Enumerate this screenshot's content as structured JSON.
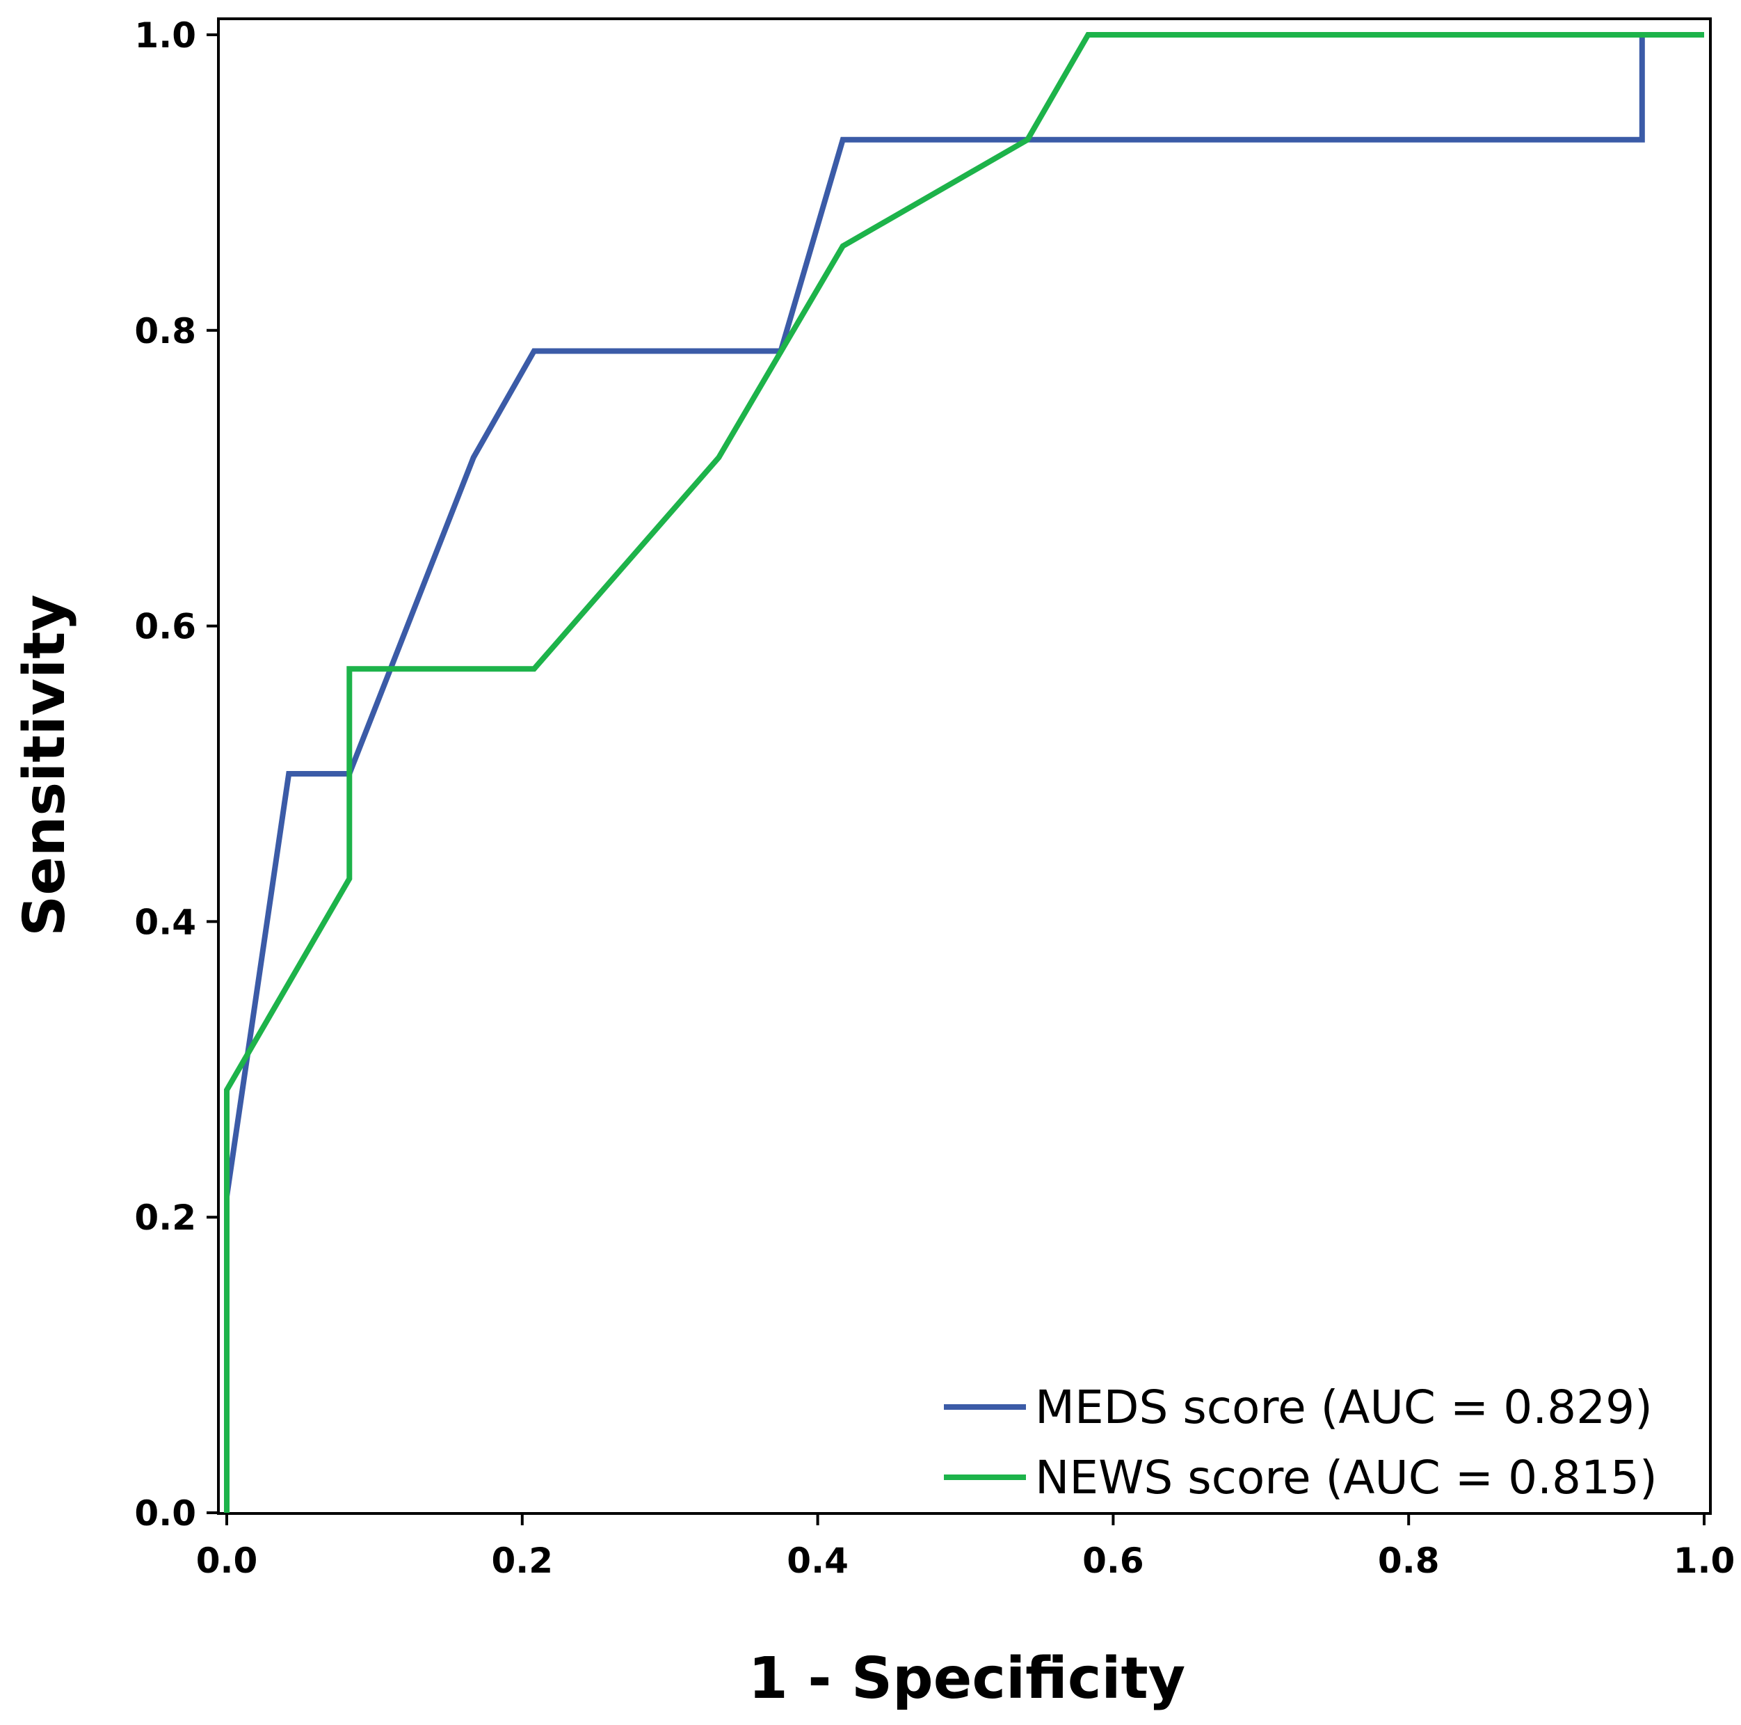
{
  "chart_data": {
    "type": "line",
    "title": "",
    "xlabel": "1 - Specificity",
    "ylabel": "Sensitivity",
    "xlim": [
      0,
      1
    ],
    "ylim": [
      0,
      1
    ],
    "x_ticks": [
      "0.0",
      "0.2",
      "0.4",
      "0.6",
      "0.8",
      "1.0"
    ],
    "y_ticks": [
      "0.0",
      "0.2",
      "0.4",
      "0.6",
      "0.8",
      "1.0"
    ],
    "grid": false,
    "legend_position": "bottom-right",
    "series": [
      {
        "name": "MEDS score (AUC = 0.829)",
        "color": "#3b5ba7",
        "x": [
          0.0,
          0.0,
          0.0,
          0.042,
          0.083,
          0.125,
          0.167,
          0.208,
          0.375,
          0.417,
          0.958,
          0.958,
          1.0
        ],
        "y": [
          0.0,
          0.214,
          0.214,
          0.5,
          0.5,
          0.607,
          0.714,
          0.786,
          0.786,
          0.929,
          0.929,
          1.0,
          1.0
        ]
      },
      {
        "name": "NEWS score (AUC = 0.815)",
        "color": "#1db34a",
        "x": [
          0.0,
          0.0,
          0.083,
          0.083,
          0.208,
          0.333,
          0.417,
          0.542,
          0.583,
          1.0
        ],
        "y": [
          0.0,
          0.286,
          0.429,
          0.571,
          0.571,
          0.714,
          0.857,
          0.929,
          1.0,
          1.0
        ]
      }
    ]
  }
}
